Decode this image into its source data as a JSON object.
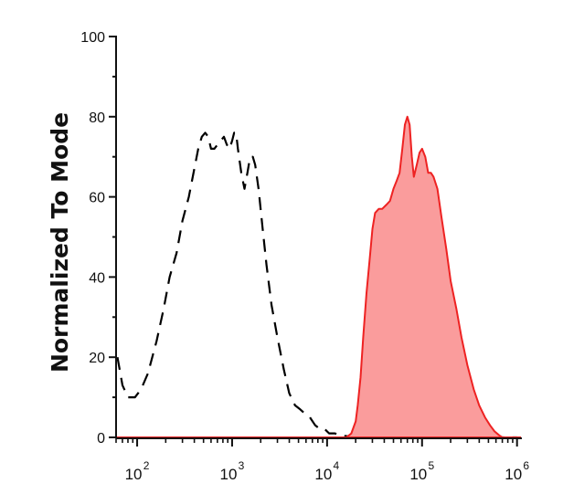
{
  "chart_data": {
    "type": "area",
    "title": "",
    "xlabel": "",
    "ylabel": "Normalized To Mode",
    "x_scale": "log",
    "xlim": [
      60,
      1100000
    ],
    "ylim": [
      0,
      100
    ],
    "y_ticks": [
      "0",
      "20",
      "40",
      "60",
      "80",
      "100"
    ],
    "x_ticks": [
      {
        "base": "10",
        "exp": "2"
      },
      {
        "base": "10",
        "exp": "3"
      },
      {
        "base": "10",
        "exp": "4"
      },
      {
        "base": "10",
        "exp": "5"
      },
      {
        "base": "10",
        "exp": "6"
      }
    ],
    "grid": false,
    "legend": "none",
    "series": [
      {
        "style": "dashed-line",
        "color": "#000000",
        "x": [
          62,
          70,
          80,
          95,
          110,
          130,
          160,
          190,
          220,
          260,
          300,
          350,
          400,
          440,
          480,
          520,
          560,
          600,
          650,
          700,
          760,
          820,
          880,
          940,
          1000,
          1050,
          1100,
          1150,
          1250,
          1350,
          1450,
          1550,
          1650,
          1750,
          1900,
          2100,
          2300,
          2600,
          3000,
          3500,
          4000,
          4600,
          5200,
          5800,
          6600,
          7500,
          8500,
          9500,
          10500,
          12000,
          14000,
          20000,
          100000,
          1000000
        ],
        "y": [
          20,
          13,
          10,
          10,
          12,
          16,
          24,
          32,
          40,
          46,
          54,
          60,
          67,
          72,
          75,
          76,
          75,
          72,
          72,
          73,
          74,
          75,
          73,
          72,
          74,
          76,
          76,
          72,
          66,
          62,
          66,
          70,
          70,
          68,
          62,
          52,
          43,
          33,
          25,
          17,
          11,
          8,
          7,
          6,
          5,
          3,
          2,
          2,
          1,
          1,
          0.5,
          0,
          0,
          0
        ]
      },
      {
        "style": "filled-area",
        "color": "#ee2222",
        "fill": "#fa9c9c",
        "x": [
          16000,
          18000,
          20000,
          21000,
          22500,
          24000,
          26000,
          28000,
          30000,
          32000,
          35000,
          38000,
          42000,
          46000,
          50000,
          54000,
          58000,
          62000,
          66000,
          70000,
          74000,
          78000,
          82000,
          88000,
          94000,
          100000,
          108000,
          116000,
          124000,
          132000,
          145000,
          160000,
          180000,
          200000,
          230000,
          260000,
          300000,
          350000,
          400000,
          460000,
          520000,
          580000,
          650000,
          700000
        ],
        "y": [
          0,
          1,
          4,
          8,
          15,
          25,
          36,
          44,
          52,
          56,
          57,
          57,
          58,
          59,
          62,
          64,
          66,
          72,
          78,
          80,
          78,
          70,
          65,
          68,
          71,
          72,
          70,
          66,
          66,
          65,
          62,
          55,
          47,
          39,
          32,
          25,
          18,
          12,
          8,
          5,
          3,
          1.5,
          0.5,
          0
        ]
      }
    ]
  }
}
